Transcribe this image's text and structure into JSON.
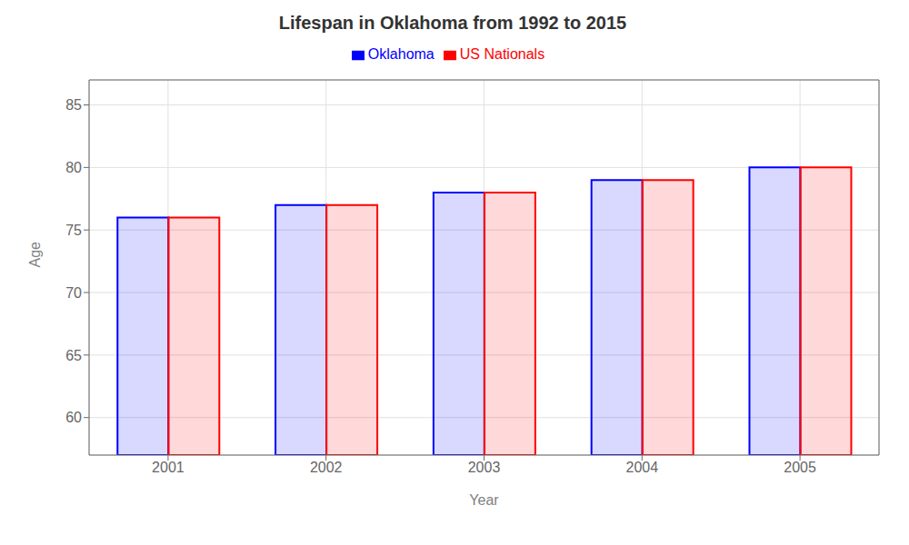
{
  "chart_data": {
    "type": "bar",
    "title": "Lifespan in Oklahoma from 1992 to 2015",
    "x_label": "Year",
    "y_label": "Age",
    "categories": [
      "2001",
      "2002",
      "2003",
      "2004",
      "2005"
    ],
    "series": [
      {
        "name": "Oklahoma",
        "color": "#0000ff",
        "values": [
          76,
          77,
          78,
          79,
          80
        ]
      },
      {
        "name": "US Nationals",
        "color": "#ff0000",
        "values": [
          76,
          77,
          78,
          79,
          80
        ]
      }
    ],
    "ylim": [
      57,
      87
    ],
    "yticks": [
      60,
      65,
      70,
      75,
      80,
      85
    ],
    "grid": true,
    "legend": "top"
  }
}
